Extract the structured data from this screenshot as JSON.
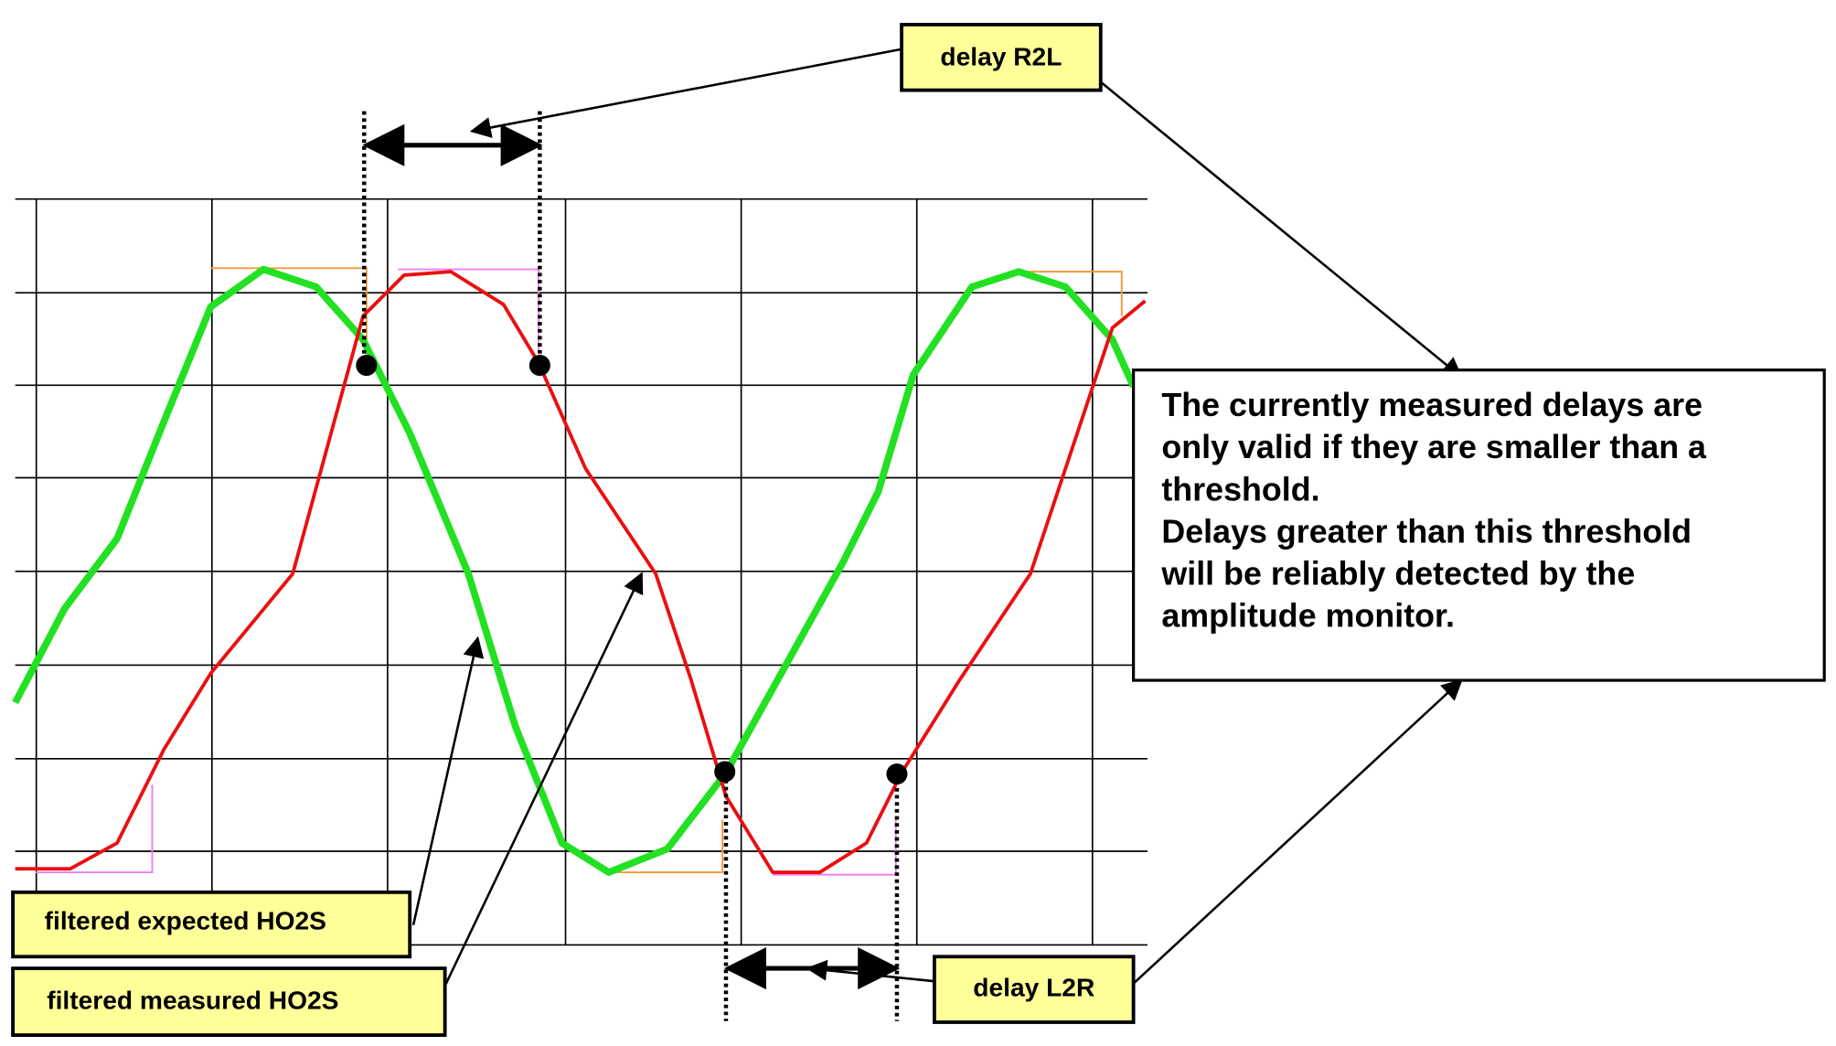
{
  "callouts": {
    "delay_r2l": "delay R2L",
    "delay_l2r": "delay L2R",
    "expected": "filtered expected HO2S",
    "measured": "filtered measured HO2S"
  },
  "note": {
    "lines": [
      "The currently measured delays are",
      "only valid if they are smaller than a",
      "threshold.",
      "Delays greater than this threshold",
      "will be reliably detected by the",
      "amplitude monitor."
    ]
  }
}
